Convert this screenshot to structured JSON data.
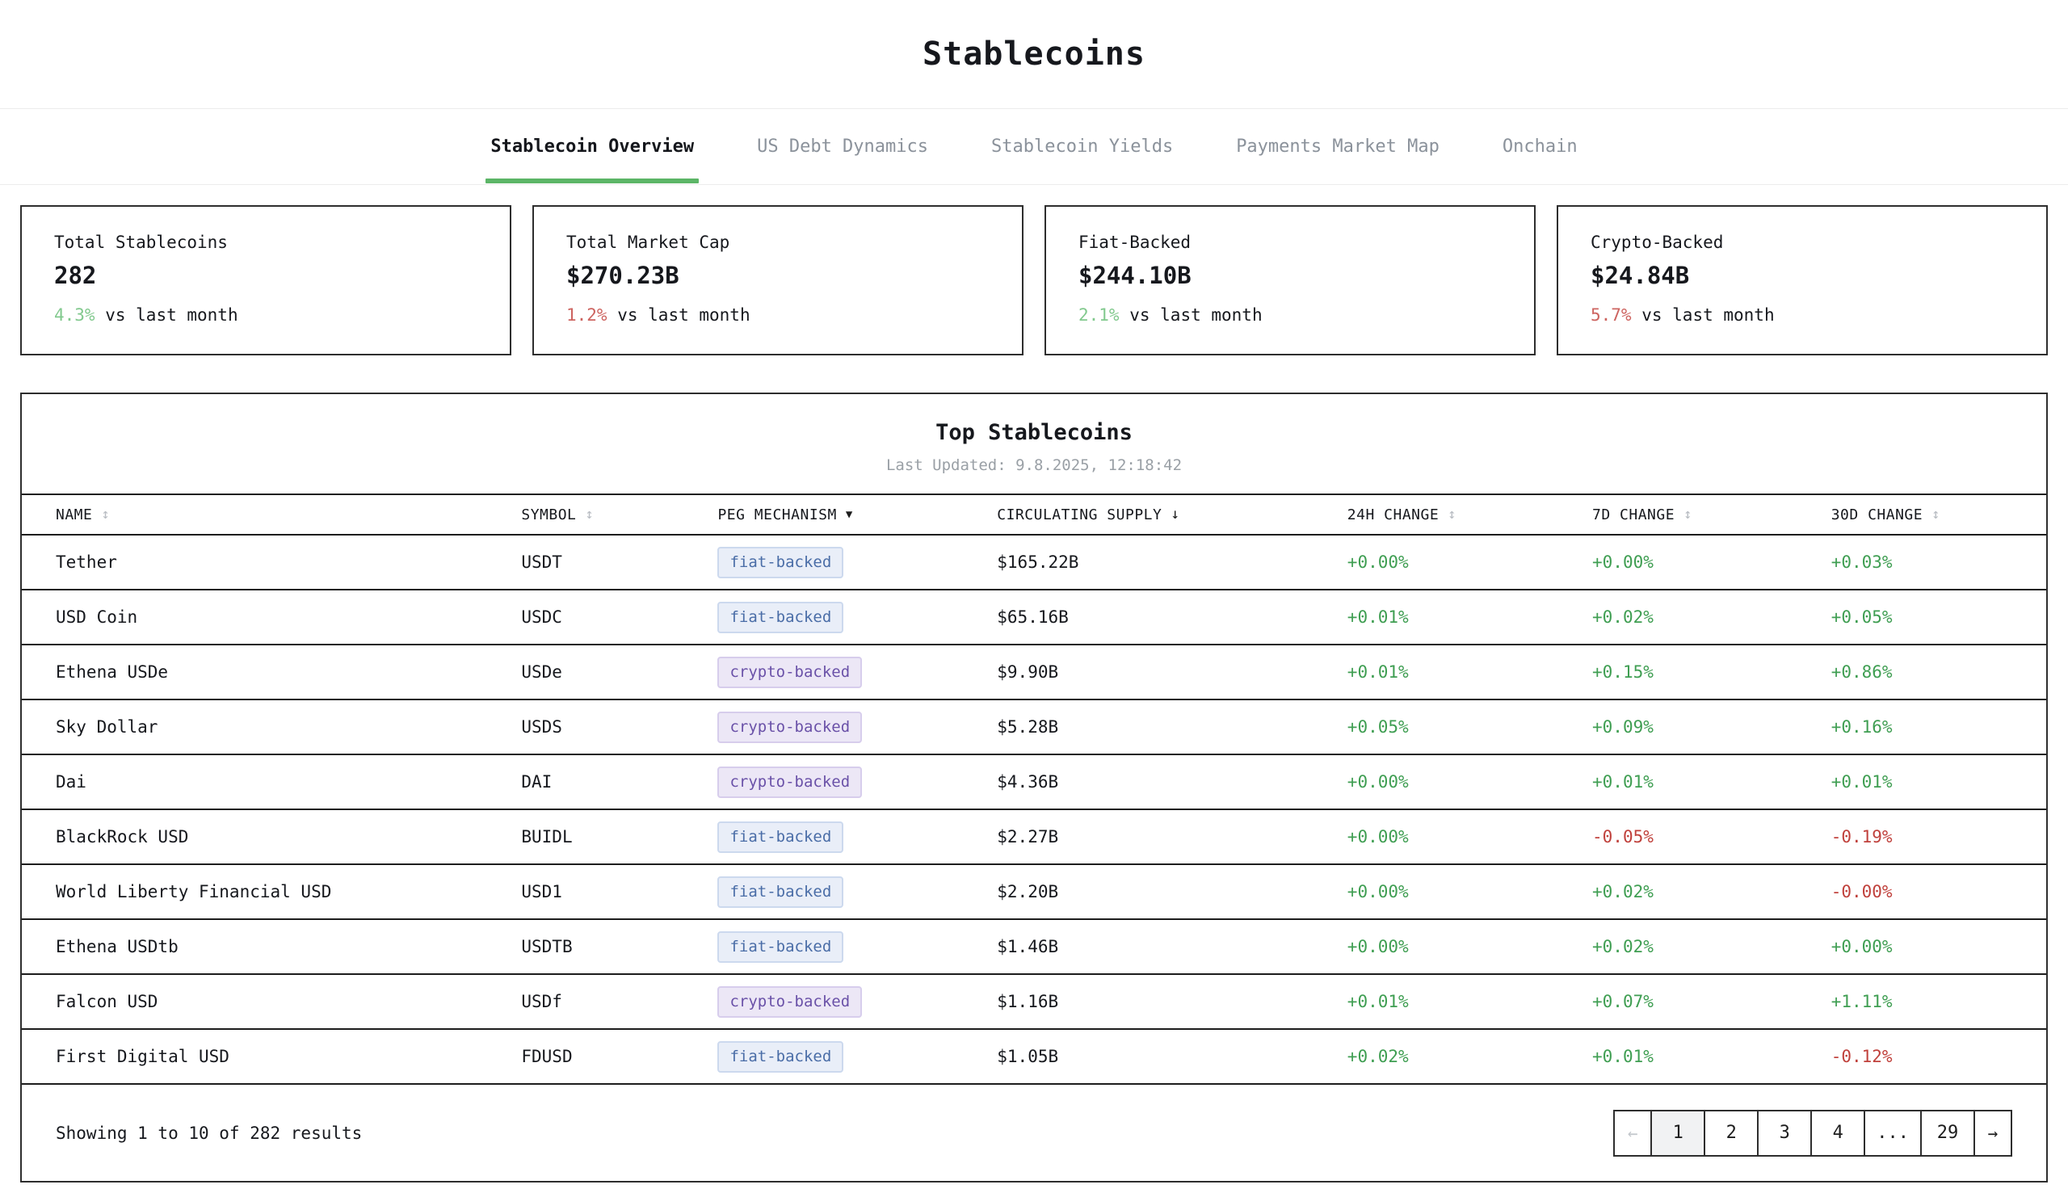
{
  "page": {
    "title": "Stablecoins"
  },
  "tabs": [
    {
      "label": "Stablecoin Overview",
      "active": true
    },
    {
      "label": "US Debt Dynamics",
      "active": false
    },
    {
      "label": "Stablecoin Yields",
      "active": false
    },
    {
      "label": "Payments Market Map",
      "active": false
    },
    {
      "label": "Onchain",
      "active": false
    }
  ],
  "stat_cards": [
    {
      "label": "Total Stablecoins",
      "value": "282",
      "change": "4.3%",
      "direction": "up",
      "compare_label": "vs last month"
    },
    {
      "label": "Total Market Cap",
      "value": "$270.23B",
      "change": "1.2%",
      "direction": "down",
      "compare_label": "vs last month"
    },
    {
      "label": "Fiat-Backed",
      "value": "$244.10B",
      "change": "2.1%",
      "direction": "up",
      "compare_label": "vs last month"
    },
    {
      "label": "Crypto-Backed",
      "value": "$24.84B",
      "change": "5.7%",
      "direction": "down",
      "compare_label": "vs last month"
    }
  ],
  "table": {
    "title": "Top Stablecoins",
    "last_updated": "Last Updated: 9.8.2025, 12:18:42",
    "columns": [
      {
        "label": "NAME",
        "sort_icon": "↕",
        "active_sort": false
      },
      {
        "label": "SYMBOL",
        "sort_icon": "↕",
        "active_sort": false
      },
      {
        "label": "PEG MECHANISM",
        "sort_icon": "▼",
        "active_sort": true
      },
      {
        "label": "CIRCULATING SUPPLY",
        "sort_icon": "↓",
        "active_sort": true
      },
      {
        "label": "24H CHANGE",
        "sort_icon": "↕",
        "active_sort": false
      },
      {
        "label": "7D CHANGE",
        "sort_icon": "↕",
        "active_sort": false
      },
      {
        "label": "30D CHANGE",
        "sort_icon": "↕",
        "active_sort": false
      }
    ],
    "rows": [
      {
        "name": "Tether",
        "symbol": "USDT",
        "peg": "fiat-backed",
        "supply": "$165.22B",
        "change_24h": "+0.00%",
        "change_7d": "+0.00%",
        "change_30d": "+0.03%"
      },
      {
        "name": "USD Coin",
        "symbol": "USDC",
        "peg": "fiat-backed",
        "supply": "$65.16B",
        "change_24h": "+0.01%",
        "change_7d": "+0.02%",
        "change_30d": "+0.05%"
      },
      {
        "name": "Ethena USDe",
        "symbol": "USDe",
        "peg": "crypto-backed",
        "supply": "$9.90B",
        "change_24h": "+0.01%",
        "change_7d": "+0.15%",
        "change_30d": "+0.86%"
      },
      {
        "name": "Sky Dollar",
        "symbol": "USDS",
        "peg": "crypto-backed",
        "supply": "$5.28B",
        "change_24h": "+0.05%",
        "change_7d": "+0.09%",
        "change_30d": "+0.16%"
      },
      {
        "name": "Dai",
        "symbol": "DAI",
        "peg": "crypto-backed",
        "supply": "$4.36B",
        "change_24h": "+0.00%",
        "change_7d": "+0.01%",
        "change_30d": "+0.01%"
      },
      {
        "name": "BlackRock USD",
        "symbol": "BUIDL",
        "peg": "fiat-backed",
        "supply": "$2.27B",
        "change_24h": "+0.00%",
        "change_7d": "-0.05%",
        "change_30d": "-0.19%"
      },
      {
        "name": "World Liberty Financial USD",
        "symbol": "USD1",
        "peg": "fiat-backed",
        "supply": "$2.20B",
        "change_24h": "+0.00%",
        "change_7d": "+0.02%",
        "change_30d": "-0.00%"
      },
      {
        "name": "Ethena USDtb",
        "symbol": "USDTB",
        "peg": "fiat-backed",
        "supply": "$1.46B",
        "change_24h": "+0.00%",
        "change_7d": "+0.02%",
        "change_30d": "+0.00%"
      },
      {
        "name": "Falcon USD",
        "symbol": "USDf",
        "peg": "crypto-backed",
        "supply": "$1.16B",
        "change_24h": "+0.01%",
        "change_7d": "+0.07%",
        "change_30d": "+1.11%"
      },
      {
        "name": "First Digital USD",
        "symbol": "FDUSD",
        "peg": "fiat-backed",
        "supply": "$1.05B",
        "change_24h": "+0.02%",
        "change_7d": "+0.01%",
        "change_30d": "-0.12%"
      }
    ]
  },
  "pagination": {
    "summary": "Showing 1 to 10 of 282 results",
    "prev_label": "←",
    "pages": [
      "1",
      "2",
      "3",
      "4",
      "...",
      "29"
    ],
    "active_page": "1",
    "next_label": "→"
  },
  "colors": {
    "positive": "#3f9e52",
    "negative": "#c0413c",
    "card_positive": "#82c98e",
    "card_negative": "#cd6460",
    "accent_underline": "#5cb567",
    "fiat_badge_text": "#4a6da7",
    "crypto_badge_text": "#6a51a8"
  }
}
